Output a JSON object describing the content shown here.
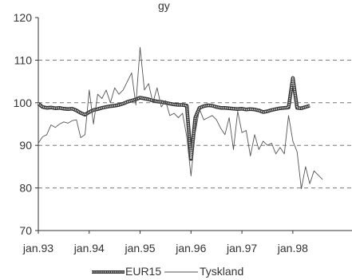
{
  "chart_data": {
    "type": "line",
    "title_fragment": "gy",
    "ylim": [
      70,
      120
    ],
    "yticks": [
      "70",
      "80",
      "90",
      "100",
      "110",
      "120"
    ],
    "xlim": [
      0,
      70
    ],
    "xticks": [
      {
        "label": "jan.93",
        "x": 0
      },
      {
        "label": "jan.94",
        "x": 12
      },
      {
        "label": "jan.95",
        "x": 24
      },
      {
        "label": "jan.96",
        "x": 36
      },
      {
        "label": "jan.97",
        "x": 48
      },
      {
        "label": "jan.98",
        "x": 60
      }
    ],
    "grid": {
      "horizontal_dashed": [
        80,
        90,
        100,
        110
      ]
    },
    "legend_position": "bottom-center",
    "series": [
      {
        "name": "EUR15",
        "style": "thick-hatched",
        "color": "#333333",
        "values": [
          99.8,
          99.0,
          98.8,
          98.9,
          98.7,
          98.8,
          98.6,
          98.5,
          98.6,
          98.2,
          97.6,
          97.2,
          97.8,
          98.3,
          98.5,
          98.8,
          99.0,
          99.2,
          99.3,
          99.5,
          99.8,
          100.2,
          100.5,
          100.8,
          101.2,
          101.0,
          100.8,
          100.5,
          100.3,
          100.2,
          100.0,
          99.8,
          99.6,
          99.5,
          99.5,
          99.3,
          86.8,
          96.5,
          98.8,
          99.2,
          99.4,
          99.3,
          99.0,
          98.8,
          98.8,
          98.7,
          98.6,
          98.5,
          98.6,
          98.4,
          98.5,
          98.4,
          98.2,
          97.8,
          98.0,
          98.3,
          98.5,
          98.7,
          98.8,
          98.9,
          105.8,
          98.8,
          98.7,
          99.0,
          99.3
        ]
      },
      {
        "name": "Tyskland",
        "style": "thin",
        "color": "#555555",
        "values": [
          90.5,
          92.0,
          92.5,
          94.8,
          94.2,
          95.0,
          95.5,
          95.2,
          95.8,
          96.0,
          91.8,
          92.5,
          103.0,
          95.0,
          102.0,
          101.0,
          103.0,
          100.0,
          103.5,
          102.0,
          103.0,
          105.0,
          107.0,
          99.5,
          113.0,
          103.0,
          104.5,
          100.0,
          103.5,
          99.0,
          100.5,
          97.0,
          97.5,
          96.5,
          97.5,
          92.0,
          82.8,
          93.0,
          98.5,
          96.0,
          96.5,
          97.0,
          96.0,
          94.0,
          92.5,
          96.5,
          89.0,
          98.0,
          93.0,
          93.5,
          87.5,
          92.5,
          89.0,
          91.0,
          90.0,
          90.5,
          88.0,
          89.5,
          88.0,
          97.0,
          91.0,
          88.5,
          79.8,
          85.0,
          81.0,
          84.0,
          83.0,
          82.0
        ]
      }
    ]
  }
}
